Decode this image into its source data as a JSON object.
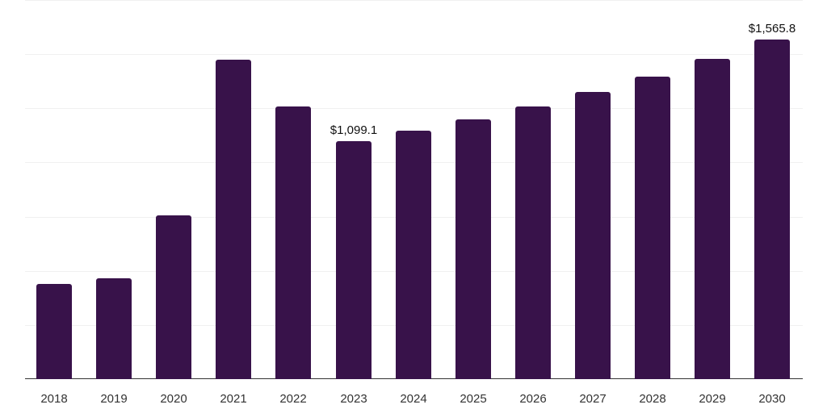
{
  "chart_data": {
    "type": "bar",
    "title": "",
    "xlabel": "",
    "ylabel": "",
    "categories": [
      "2018",
      "2019",
      "2020",
      "2021",
      "2022",
      "2023",
      "2024",
      "2025",
      "2026",
      "2027",
      "2028",
      "2029",
      "2030"
    ],
    "values": [
      440,
      466,
      756,
      1475,
      1259,
      1099.1,
      1148,
      1200,
      1259,
      1326,
      1397,
      1479,
      1565.8
    ],
    "data_labels": {
      "2023": "$1,099.1",
      "2030": "$1,565.8"
    },
    "ylim": [
      0,
      1750
    ],
    "gridlines": [
      0,
      250,
      500,
      750,
      1000,
      1250,
      1500,
      1750
    ],
    "grid": true,
    "legend": "none",
    "bar_color": "#38124a"
  }
}
